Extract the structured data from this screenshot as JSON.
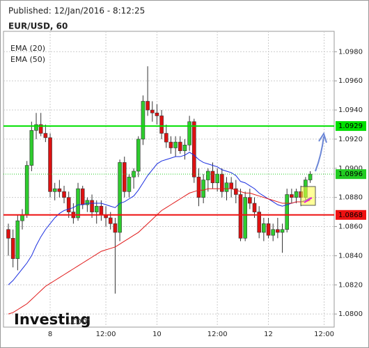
{
  "header": {
    "published": "Published: 12/Jan/2016 - 8:12:25",
    "symbol": "EUR/USD, 60"
  },
  "logo": {
    "name": "Investing",
    "suffix": ".com"
  },
  "chart_data": {
    "type": "candlestick",
    "categories": [
      null,
      null,
      null,
      null,
      null,
      null,
      null,
      null,
      null,
      "8",
      null,
      null,
      null,
      null,
      null,
      null,
      null,
      null,
      null,
      null,
      null,
      "12:00",
      null,
      null,
      null,
      null,
      null,
      null,
      null,
      null,
      null,
      null,
      "10",
      null,
      null,
      null,
      null,
      null,
      null,
      null,
      null,
      null,
      null,
      null,
      null,
      "12:00",
      null,
      null,
      null,
      null,
      null,
      null,
      null,
      null,
      null,
      null,
      "12",
      null,
      null,
      null,
      null,
      null,
      null,
      null,
      null,
      null,
      null,
      null,
      "12:00"
    ],
    "open": [
      1.0858,
      1.0852,
      1.0838,
      1.0864,
      1.0868,
      1.0902,
      1.0926,
      1.093,
      1.0924,
      1.0921,
      1.0884,
      1.0886,
      1.0884,
      1.088,
      1.087,
      1.0866,
      1.0886,
      1.0875,
      1.0878,
      1.087,
      1.0874,
      1.0868,
      1.0866,
      1.0862,
      1.0856,
      1.0904,
      1.0884,
      1.0894,
      1.0898,
      1.092,
      1.0946,
      1.094,
      1.0938,
      1.0936,
      1.0924,
      1.0918,
      1.0914,
      1.0918,
      1.0912,
      1.0916,
      1.0932,
      1.0894,
      1.088,
      1.0892,
      1.0898,
      1.089,
      1.0896,
      1.0884,
      1.089,
      1.0886,
      1.0882,
      1.0852,
      1.088,
      1.0876,
      1.087,
      1.0856,
      1.0862,
      1.0854,
      1.0858,
      1.0856,
      1.0858,
      1.0882,
      1.088,
      1.0884,
      1.088,
      1.0892,
      null,
      null,
      null
    ],
    "high": [
      1.0862,
      1.0858,
      1.0868,
      1.0872,
      1.0905,
      1.0932,
      1.0938,
      1.0938,
      1.093,
      1.0924,
      1.089,
      1.0892,
      1.0888,
      1.0884,
      1.0876,
      1.089,
      1.0888,
      1.088,
      1.0882,
      1.0878,
      1.0878,
      1.0874,
      1.087,
      1.0866,
      1.0906,
      1.0908,
      1.0896,
      1.09,
      1.0922,
      1.095,
      1.097,
      1.0946,
      1.0944,
      1.094,
      1.093,
      1.0922,
      1.0922,
      1.0922,
      1.092,
      1.0936,
      1.0934,
      1.09,
      1.0896,
      1.09,
      1.0904,
      1.09,
      1.09,
      1.0894,
      1.0894,
      1.0892,
      1.0886,
      1.0884,
      1.0886,
      1.088,
      1.0874,
      1.0866,
      1.0866,
      1.0862,
      1.0866,
      1.0862,
      1.0886,
      1.0886,
      1.0886,
      1.0888,
      1.0894,
      1.0898,
      null,
      null,
      null
    ],
    "low": [
      1.084,
      1.0832,
      1.083,
      1.0858,
      1.0866,
      1.0898,
      1.092,
      1.0922,
      1.0918,
      1.088,
      1.0878,
      1.088,
      1.0876,
      1.0866,
      1.0862,
      1.0864,
      1.0872,
      1.087,
      1.0866,
      1.0862,
      1.0864,
      1.086,
      1.0858,
      1.0814,
      1.085,
      1.088,
      1.088,
      1.0886,
      1.0894,
      1.0916,
      1.0936,
      1.0932,
      1.093,
      1.092,
      1.0914,
      1.091,
      1.0908,
      1.091,
      1.0906,
      1.0912,
      1.089,
      1.0874,
      1.0876,
      1.0884,
      1.0886,
      1.0884,
      1.088,
      1.0878,
      1.088,
      1.0876,
      1.085,
      1.085,
      1.0872,
      1.0866,
      1.0852,
      1.085,
      1.0852,
      1.085,
      1.0852,
      1.0842,
      1.0856,
      1.0876,
      1.0876,
      1.0874,
      1.0878,
      1.089,
      null,
      null,
      null
    ],
    "close": [
      1.0852,
      1.0838,
      1.0864,
      1.0868,
      1.0902,
      1.0926,
      1.093,
      1.0924,
      1.0921,
      1.0884,
      1.0886,
      1.0884,
      1.088,
      1.087,
      1.0866,
      1.0886,
      1.0875,
      1.0878,
      1.087,
      1.0874,
      1.0868,
      1.0866,
      1.0862,
      1.0856,
      1.0904,
      1.0884,
      1.0894,
      1.0898,
      1.092,
      1.0946,
      1.094,
      1.0938,
      1.0936,
      1.0924,
      1.0918,
      1.0914,
      1.0918,
      1.0912,
      1.0916,
      1.0932,
      1.0894,
      1.088,
      1.0892,
      1.0898,
      1.089,
      1.0896,
      1.0884,
      1.089,
      1.0886,
      1.0882,
      1.0852,
      1.088,
      1.0876,
      1.087,
      1.0856,
      1.0862,
      1.0854,
      1.0858,
      1.0856,
      1.0858,
      1.0882,
      1.088,
      1.0884,
      1.088,
      1.0892,
      1.0896,
      null,
      null,
      null
    ],
    "up_color": "#2ecc2e",
    "down_color": "#dd1111",
    "series": [
      {
        "name": "EMA (20)",
        "color": "#1a2ee0",
        "values": [
          1.082,
          1.0823,
          1.0827,
          1.0831,
          1.0835,
          1.084,
          1.0847,
          1.0853,
          1.0858,
          1.0862,
          1.0866,
          1.0869,
          1.0871,
          1.0872,
          1.0873,
          1.0875,
          1.0875,
          1.0876,
          1.0876,
          1.0876,
          1.0876,
          1.0875,
          1.0874,
          1.0873,
          1.0876,
          1.0877,
          1.0879,
          1.0881,
          1.0885,
          1.089,
          1.0895,
          1.0899,
          1.0903,
          1.0905,
          1.0906,
          1.0907,
          1.0908,
          1.0908,
          1.0909,
          1.0911,
          1.0909,
          1.0906,
          1.0904,
          1.0903,
          1.0902,
          1.0901,
          1.0899,
          1.0898,
          1.0897,
          1.0895,
          1.0891,
          1.089,
          1.0888,
          1.0886,
          1.0883,
          1.0881,
          1.0879,
          1.0877,
          1.0875,
          1.0874,
          1.0875,
          1.0876,
          1.0877,
          1.0877,
          1.0878,
          1.088,
          null,
          null,
          null
        ]
      },
      {
        "name": "EMA (50)",
        "color": "#e01818",
        "values": [
          1.08,
          1.0801,
          1.0803,
          1.0805,
          1.0807,
          1.081,
          1.0813,
          1.0816,
          1.0819,
          1.0821,
          1.0823,
          1.0825,
          1.0827,
          1.0829,
          1.0831,
          1.0833,
          1.0835,
          1.0837,
          1.0839,
          1.0841,
          1.0843,
          1.0844,
          1.0845,
          1.0846,
          1.0848,
          1.085,
          1.0852,
          1.0854,
          1.0856,
          1.0859,
          1.0862,
          1.0865,
          1.0868,
          1.0871,
          1.0873,
          1.0875,
          1.0877,
          1.0879,
          1.0881,
          1.0883,
          1.0884,
          1.0885,
          1.0885,
          1.0886,
          1.0886,
          1.0886,
          1.0886,
          1.0886,
          1.0886,
          1.0885,
          1.0884,
          1.0883,
          1.0883,
          1.0882,
          1.0881,
          1.088,
          1.0879,
          1.0878,
          1.0877,
          1.0876,
          1.0876,
          1.0876,
          1.0877,
          1.0877,
          1.0877,
          1.0878,
          null,
          null,
          null
        ]
      }
    ],
    "levels": [
      {
        "value": 1.0929,
        "color": "#00e000",
        "style": "solid"
      },
      {
        "value": 1.0868,
        "color": "#ee1111",
        "style": "solid"
      },
      {
        "value": 1.0896,
        "color": "#22cc22",
        "style": "dotted"
      }
    ],
    "ylim": [
      1.0791,
      1.0994
    ],
    "yticks": [
      {
        "value": 1.08,
        "label": "1.0800"
      },
      {
        "value": 1.082,
        "label": "1.0820"
      },
      {
        "value": 1.084,
        "label": "1.0840"
      },
      {
        "value": 1.086,
        "label": "1.0860"
      },
      {
        "value": 1.088,
        "label": "1.0880"
      },
      {
        "value": 1.09,
        "label": "1.0900"
      },
      {
        "value": 1.092,
        "label": "1.0920"
      },
      {
        "value": 1.094,
        "label": "1.0940"
      },
      {
        "value": 1.096,
        "label": "1.0960"
      },
      {
        "value": 1.098,
        "label": "1.0980"
      }
    ],
    "grid": true
  }
}
